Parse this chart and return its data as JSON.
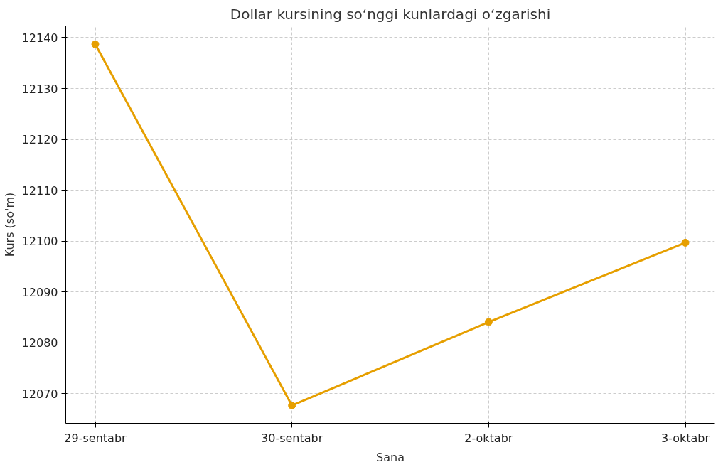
{
  "chart_data": {
    "type": "line",
    "title": "Dollar kursining so‘nggi kunlardagi o‘zgarishi",
    "xlabel": "Sana",
    "ylabel": "Kurs (so'm)",
    "categories": [
      "29-sentabr",
      "30-sentabr",
      "2-oktabr",
      "3-oktabr"
    ],
    "series": [
      {
        "color": "#e69f00",
        "values": [
          12138.7,
          12067.7,
          12084.1,
          12099.7
        ]
      }
    ],
    "ylim": [
      12064.2,
      12142.3
    ],
    "yticks": [
      12070,
      12080,
      12090,
      12100,
      12110,
      12120,
      12130,
      12140
    ],
    "grid": true,
    "marker": "circle",
    "line_style": "solid"
  }
}
